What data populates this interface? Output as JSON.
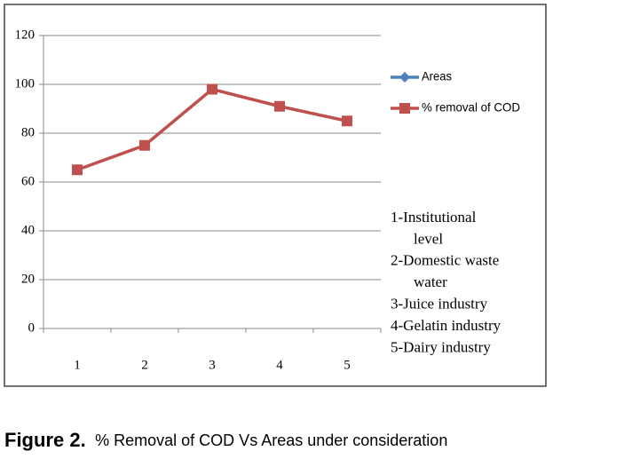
{
  "chart_data": {
    "type": "line",
    "categories": [
      "1",
      "2",
      "3",
      "4",
      "5"
    ],
    "series": [
      {
        "name": "Areas",
        "color": "#4f81bd",
        "values": [
          null,
          null,
          null,
          null,
          null
        ]
      },
      {
        "name": "% removal of COD",
        "color": "#c0504d",
        "values": [
          65,
          75,
          98,
          91,
          85
        ]
      }
    ],
    "ylim": [
      0,
      120
    ],
    "yticks": [
      0,
      20,
      40,
      60,
      80,
      100,
      120
    ],
    "grid": true,
    "legend": "right",
    "annotations": [
      [
        "1-Institutional",
        "level"
      ],
      [
        "2-Domestic waste",
        "water"
      ],
      [
        "3-Juice industry"
      ],
      [
        "4-Gelatin industry"
      ],
      [
        "5-Dairy industry"
      ]
    ]
  },
  "caption": {
    "label": "Figure 2.",
    "text": "% Removal of COD Vs Areas under consideration"
  }
}
